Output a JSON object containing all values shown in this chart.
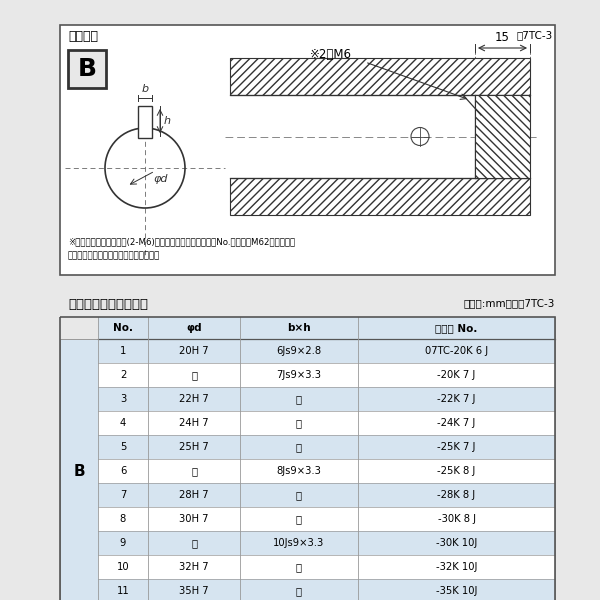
{
  "title_diagram": "軸穴形状",
  "fig_label": "図7TC-3",
  "table_title": "軸穴形状コード一覧表",
  "table_unit": "（単位:mm）　表7TC-3",
  "note_line1": "※セットボルト用タップ(2-M6)が必要な場合は右記コードNo.の末尾にM62を付ける。",
  "note_line2": "（セットボルトは付属されています。）",
  "col_headers": [
    "No.",
    "φd",
    "b×h",
    "コード No."
  ],
  "rows": [
    [
      "1",
      "20H 7",
      "6Js9×2.8",
      "07TC-20K 6 J"
    ],
    [
      "2",
      "〃",
      "7Js9×3.3",
      "-20K 7 J"
    ],
    [
      "3",
      "22H 7",
      "〃",
      "-22K 7 J"
    ],
    [
      "4",
      "24H 7",
      "〃",
      "-24K 7 J"
    ],
    [
      "5",
      "25H 7",
      "〃",
      "-25K 7 J"
    ],
    [
      "6",
      "〃",
      "8Js9×3.3",
      "-25K 8 J"
    ],
    [
      "7",
      "28H 7",
      "〃",
      "-28K 8 J"
    ],
    [
      "8",
      "30H 7",
      "〃",
      "-30K 8 J"
    ],
    [
      "9",
      "〃",
      "10Js9×3.3",
      "-30K 10J"
    ],
    [
      "10",
      "32H 7",
      "〃",
      "-32K 10J"
    ],
    [
      "11",
      "35H 7",
      "〃",
      "-35K 10J"
    ]
  ],
  "row_label_B": "B",
  "bg_color_white": "#ffffff",
  "bg_color_light": "#d6e4f0",
  "border_dark": "#555555",
  "border_light": "#999999",
  "text_color": "#000000",
  "page_bg": "#e8e8e8"
}
